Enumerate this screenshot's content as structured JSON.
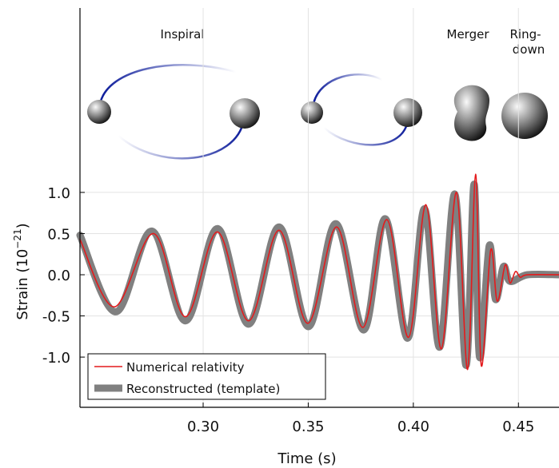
{
  "chart_data": {
    "type": "line",
    "xlabel": "Time (s)",
    "ylabel": {
      "text": "Strain (10",
      "superscript": "−21",
      "suffix": ")"
    },
    "annotations": [
      "Inspiral",
      "Merger",
      "Ring-",
      "down"
    ],
    "xlim": [
      0.2414,
      0.4693
    ],
    "ylim": [
      -1.61,
      3.24
    ],
    "xticks": [
      {
        "value": 0.3,
        "label": "0.30"
      },
      {
        "value": 0.35,
        "label": "0.35"
      },
      {
        "value": 0.4,
        "label": "0.40"
      },
      {
        "value": 0.45,
        "label": "0.45"
      }
    ],
    "yticks": [
      {
        "value": 1,
        "label": "1.0"
      },
      {
        "value": 0.5,
        "label": "0.5"
      },
      {
        "value": 0,
        "label": "0.0"
      },
      {
        "value": -0.5,
        "label": "-0.5"
      },
      {
        "value": -1,
        "label": "-1.0"
      }
    ],
    "grid": true,
    "legend": "lower left",
    "series": [
      {
        "name": "Reconstructed (template)",
        "color": "#808080",
        "x": [
          0.2414,
          0.2585,
          0.2756,
          0.2916,
          0.3068,
          0.3216,
          0.3361,
          0.3501,
          0.3631,
          0.3764,
          0.3866,
          0.3973,
          0.4053,
          0.4125,
          0.4197,
          0.4251,
          0.4289,
          0.4315,
          0.4361,
          0.4391,
          0.4429,
          0.446,
          0.4543,
          0.4692
        ],
        "values": [
          0.48,
          -0.45,
          0.53,
          -0.56,
          0.56,
          -0.6,
          0.58,
          -0.63,
          0.62,
          -0.67,
          0.68,
          -0.77,
          0.8,
          -0.88,
          0.98,
          -1.1,
          1.1,
          -1.0,
          0.35,
          -0.3,
          0.1,
          -0.08,
          0,
          0
        ]
      },
      {
        "name": "Numerical relativity",
        "color": "#e41a1c",
        "x": [
          0.2414,
          0.2578,
          0.2764,
          0.2916,
          0.3068,
          0.3216,
          0.3361,
          0.3498,
          0.3635,
          0.376,
          0.3874,
          0.3977,
          0.406,
          0.4133,
          0.4205,
          0.4258,
          0.4296,
          0.4323,
          0.4368,
          0.4399,
          0.4437,
          0.446,
          0.4486,
          0.4509,
          0.4543,
          0.4692
        ],
        "values": [
          0.43,
          -0.39,
          0.5,
          -0.51,
          0.52,
          -0.56,
          0.54,
          -0.59,
          0.58,
          -0.64,
          0.67,
          -0.76,
          0.85,
          -0.9,
          1.0,
          -1.15,
          1.22,
          -1.1,
          0.3,
          -0.32,
          0.12,
          -0.1,
          0.04,
          -0.03,
          0,
          0
        ]
      }
    ]
  }
}
